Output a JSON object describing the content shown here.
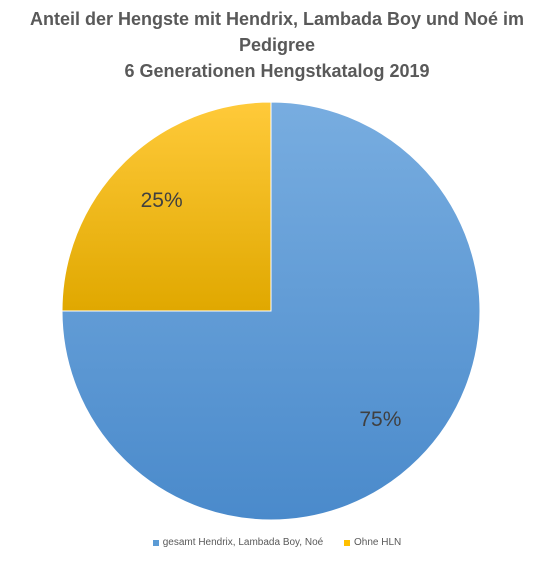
{
  "chart_data": {
    "type": "pie",
    "title": [
      "Anteil der Hengste mit Hendrix, Lambada Boy und Noé im",
      "Pedigree",
      "6 Generationen Hengstkatalog 2019"
    ],
    "slices": [
      {
        "name": "gesamt Hendrix, Lambada Boy, Noé",
        "value": 75,
        "label": "75%",
        "color": "#5B9BD5"
      },
      {
        "name": "Ohne HLN",
        "value": 25,
        "label": "25%",
        "color": "#FFC000"
      }
    ],
    "start_angle_deg": 0,
    "direction": "clockwise",
    "legend_position": "bottom"
  }
}
